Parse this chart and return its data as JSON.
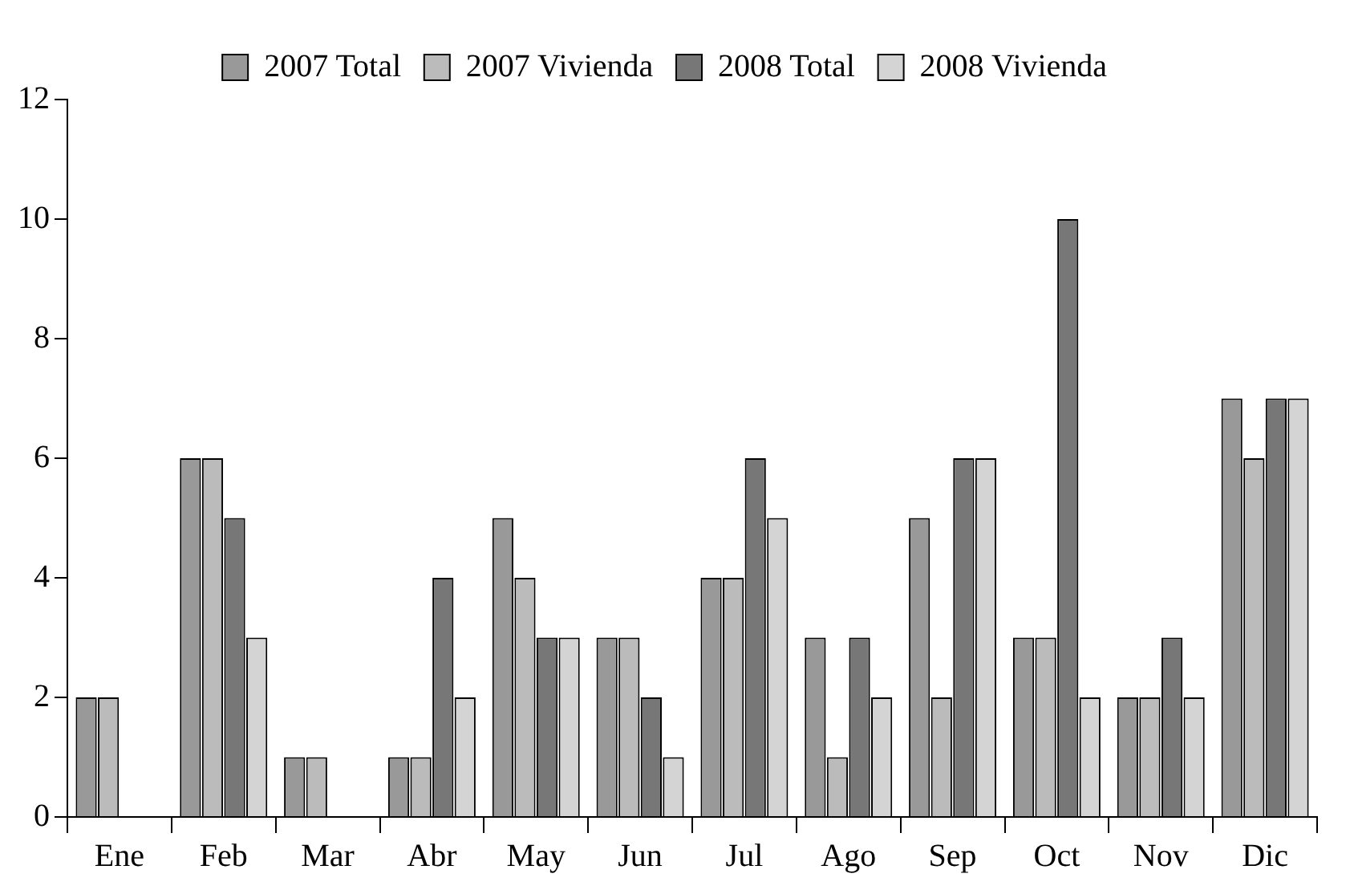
{
  "chart_data": {
    "type": "bar",
    "categories": [
      "Ene",
      "Feb",
      "Mar",
      "Abr",
      "May",
      "Jun",
      "Jul",
      "Ago",
      "Sep",
      "Oct",
      "Nov",
      "Dic"
    ],
    "series": [
      {
        "name": "2007 Total",
        "color": "#999999",
        "values": [
          2,
          6,
          1,
          1,
          5,
          3,
          4,
          3,
          5,
          3,
          2,
          7
        ]
      },
      {
        "name": "2007 Vivienda",
        "color": "#bbbbbb",
        "values": [
          2,
          6,
          1,
          1,
          4,
          3,
          4,
          1,
          2,
          3,
          2,
          6
        ]
      },
      {
        "name": "2008 Total",
        "color": "#777777",
        "values": [
          0,
          5,
          0,
          4,
          3,
          2,
          6,
          3,
          6,
          10,
          3,
          7
        ]
      },
      {
        "name": "2008 Vivienda",
        "color": "#d4d4d4",
        "values": [
          0,
          3,
          0,
          2,
          3,
          1,
          5,
          2,
          6,
          2,
          2,
          7
        ]
      }
    ],
    "ylim": [
      0,
      12
    ],
    "yticks": [
      0,
      2,
      4,
      6,
      8,
      10,
      12
    ],
    "grid": false,
    "legend": "top"
  }
}
